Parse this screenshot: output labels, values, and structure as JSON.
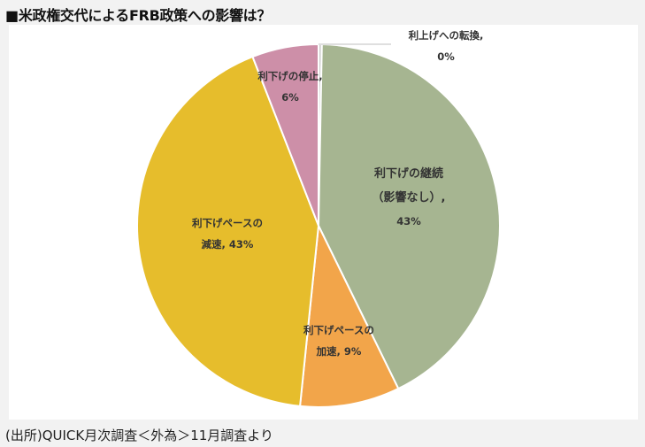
{
  "title": "■米政権交代によるFRB政策への影響は？",
  "source": "(出所)QUICK月次調査＜外為＞11月調査より",
  "colors": {
    "continue": "#a6b591",
    "accelerate": "#f2a54a",
    "decelerate": "#e6bd2c",
    "stop": "#cd8fa8",
    "hike": "#cccccc",
    "border": "#ffffff"
  },
  "chart_data": {
    "type": "pie",
    "title": "",
    "slices": [
      {
        "key": "hike",
        "label_lines": [
          "利上げへの転換,",
          "0%"
        ],
        "value": 0.3
      },
      {
        "key": "continue",
        "label_lines": [
          "利下げの継続",
          "（影響なし）,",
          "43%"
        ],
        "value": 43
      },
      {
        "key": "accelerate",
        "label_lines": [
          "利下げペースの",
          "加速, 9%"
        ],
        "value": 9
      },
      {
        "key": "decelerate",
        "label_lines": [
          "利下げペースの",
          "減速, 43%"
        ],
        "value": 43
      },
      {
        "key": "stop",
        "label_lines": [
          "利下げの停止,",
          "6%"
        ],
        "value": 6
      }
    ]
  }
}
